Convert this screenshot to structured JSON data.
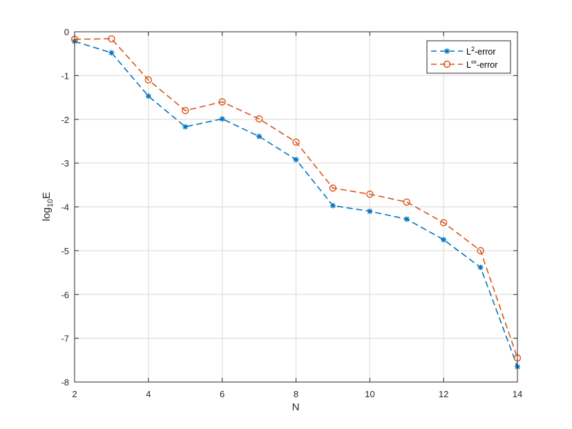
{
  "chart_data": {
    "type": "line",
    "x": [
      2,
      3,
      4,
      5,
      6,
      7,
      8,
      9,
      10,
      11,
      12,
      13,
      14
    ],
    "xlabel": "N",
    "ylabel_base": "log",
    "ylabel_sub": "10",
    "ylabel_main": "E",
    "xlim": [
      2,
      14
    ],
    "ylim": [
      -8,
      0
    ],
    "xticks": [
      2,
      4,
      6,
      8,
      10,
      12,
      14
    ],
    "yticks": [
      0,
      -1,
      -2,
      -3,
      -4,
      -5,
      -6,
      -7,
      -8
    ],
    "grid": true,
    "legend_position": "top-right",
    "series": [
      {
        "name_prefix": "L",
        "name_sup": "2",
        "name_suffix": "-error",
        "marker": "asterisk",
        "line_style": "dashed",
        "color": "#0072BD",
        "values": [
          -0.22,
          -0.48,
          -1.47,
          -2.17,
          -1.99,
          -2.39,
          -2.92,
          -3.97,
          -4.1,
          -4.28,
          -4.75,
          -5.38,
          -7.65
        ]
      },
      {
        "name_prefix": "L",
        "name_sup": "∞",
        "name_suffix": "-error",
        "marker": "circle",
        "line_style": "dashed",
        "color": "#D95319",
        "values": [
          -0.17,
          -0.16,
          -1.1,
          -1.8,
          -1.6,
          -1.99,
          -2.52,
          -3.57,
          -3.71,
          -3.89,
          -4.36,
          -5.0,
          -7.45
        ]
      }
    ]
  }
}
